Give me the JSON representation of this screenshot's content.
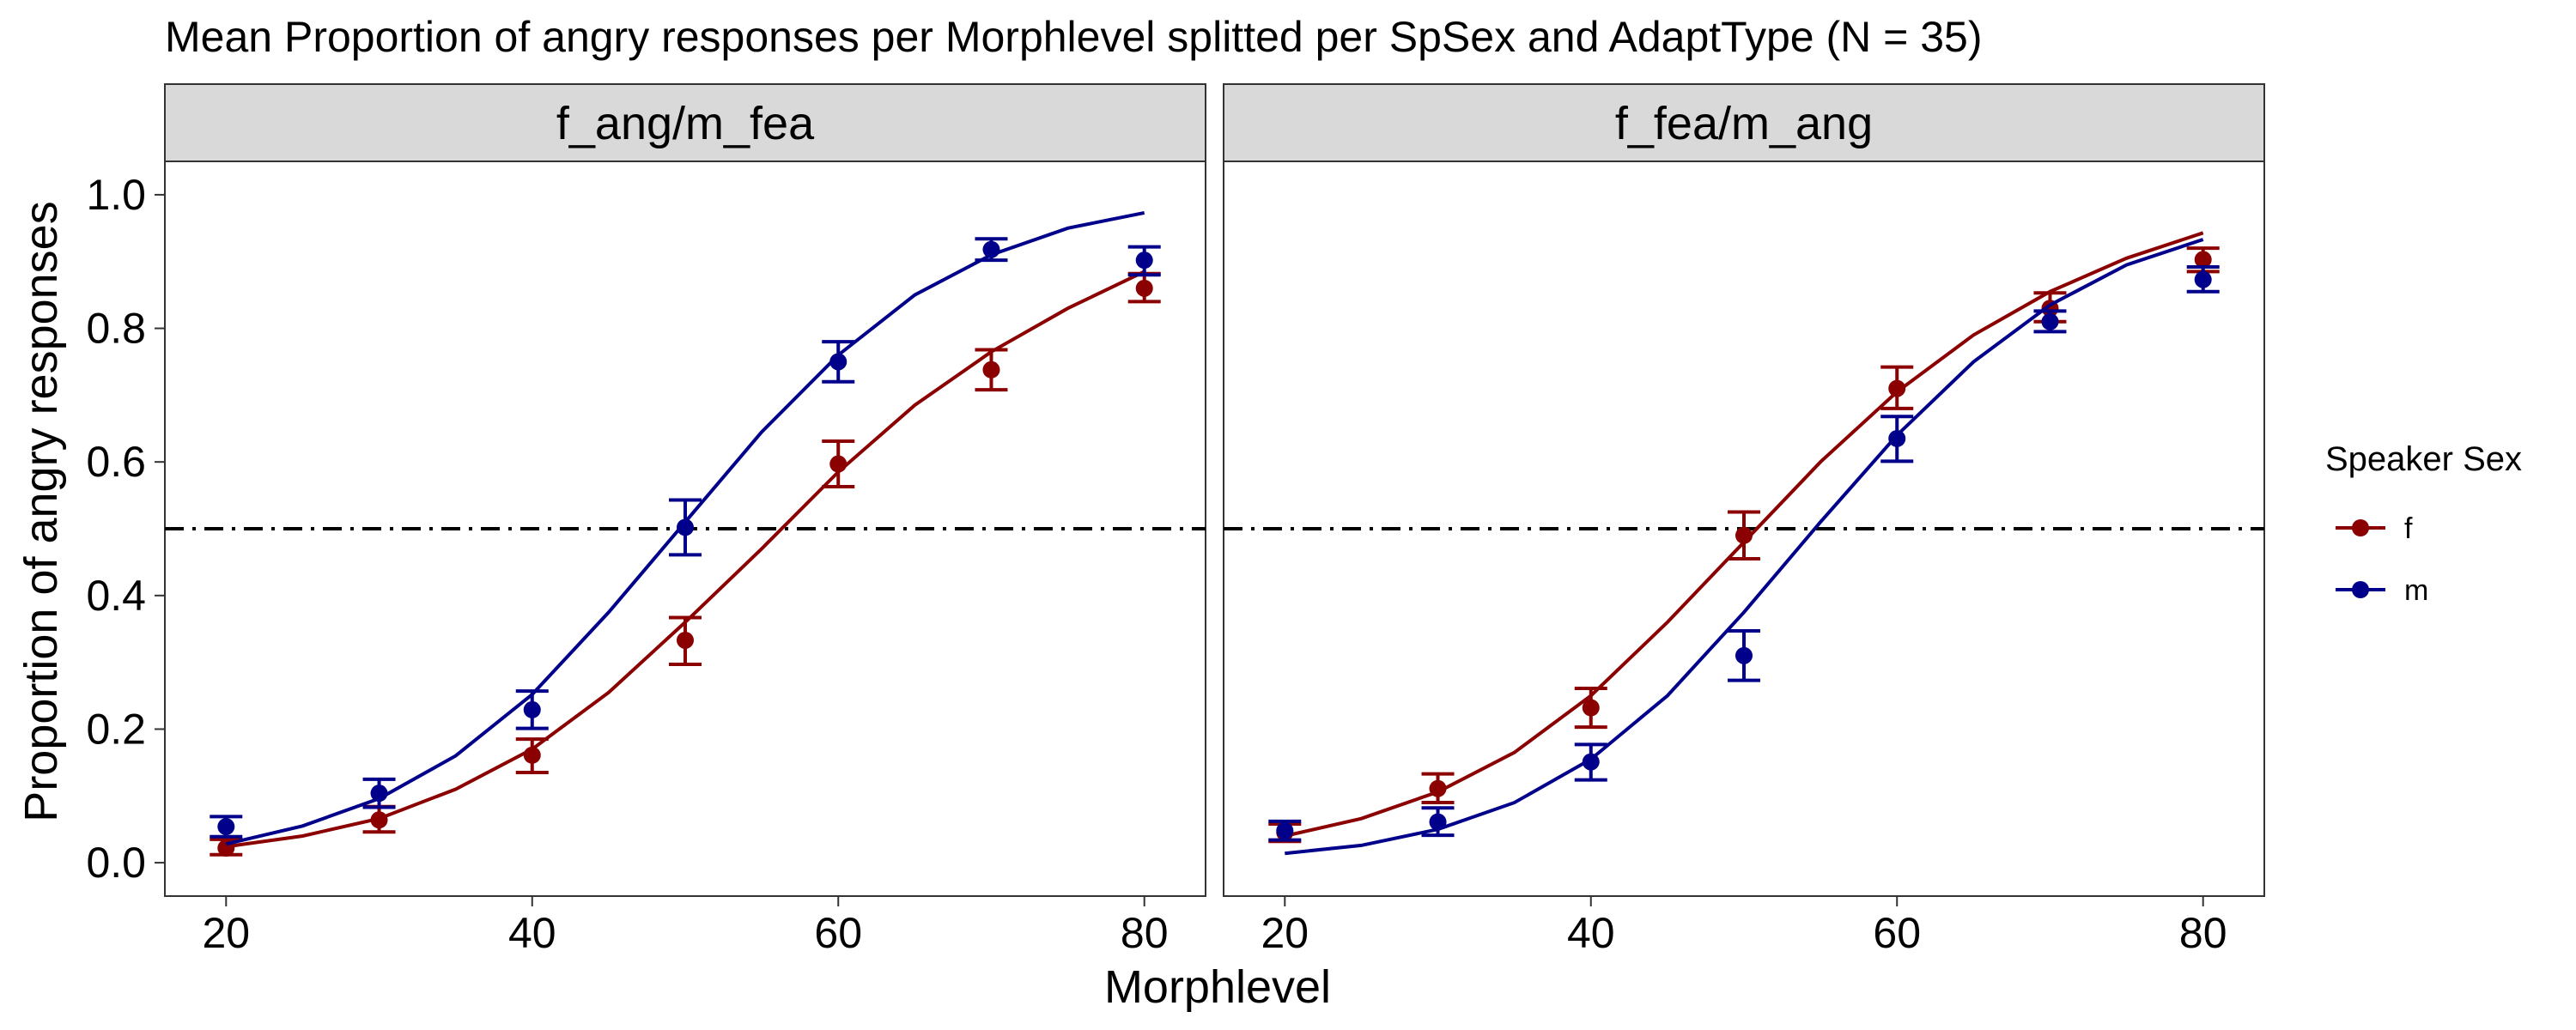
{
  "chart_data": {
    "type": "line",
    "title": "Mean Proportion of angry responses per Morphlevel splitted per SpSex and AdaptType (N = 35)",
    "xlabel": "Morphlevel",
    "ylabel": "Proportion of angry responses",
    "xlim": [
      16,
      84
    ],
    "ylim": [
      -0.05,
      1.05
    ],
    "x_ticks": [
      20,
      40,
      60,
      80
    ],
    "y_ticks": [
      0.0,
      0.2,
      0.4,
      0.6,
      0.8,
      1.0
    ],
    "x_tick_labels": [
      "20",
      "40",
      "60",
      "80"
    ],
    "y_tick_labels": [
      "0.0",
      "0.2",
      "0.4",
      "0.6",
      "0.8",
      "1.0"
    ],
    "reference_line": {
      "y": 0.5,
      "style": "dot-dash",
      "color": "#000000"
    },
    "legend": {
      "title": "Speaker Sex",
      "position": "right",
      "entries": [
        {
          "label": "f",
          "color": "#8B0000"
        },
        {
          "label": "m",
          "color": "#00008B"
        }
      ]
    },
    "panels": [
      {
        "title": "f_ang/m_fea",
        "series": [
          {
            "name": "f",
            "color": "#8B0000",
            "x": [
              20,
              30,
              40,
              50,
              60,
              70,
              80
            ],
            "mean": [
              0.022,
              0.064,
              0.161,
              0.333,
              0.597,
              0.738,
              0.86
            ],
            "err_low": [
              0.012,
              0.046,
              0.135,
              0.297,
              0.563,
              0.708,
              0.84
            ],
            "err_high": [
              0.035,
              0.084,
              0.185,
              0.367,
              0.631,
              0.768,
              0.882
            ],
            "fit_curve": [
              [
                20,
                0.024
              ],
              [
                25,
                0.04
              ],
              [
                30,
                0.066
              ],
              [
                35,
                0.11
              ],
              [
                40,
                0.17
              ],
              [
                45,
                0.255
              ],
              [
                50,
                0.36
              ],
              [
                55,
                0.47
              ],
              [
                60,
                0.585
              ],
              [
                65,
                0.685
              ],
              [
                70,
                0.765
              ],
              [
                75,
                0.83
              ],
              [
                80,
                0.885
              ]
            ]
          },
          {
            "name": "m",
            "color": "#00008B",
            "x": [
              20,
              30,
              40,
              50,
              60,
              70,
              80
            ],
            "mean": [
              0.054,
              0.104,
              0.229,
              0.502,
              0.75,
              0.918,
              0.902
            ],
            "err_low": [
              0.039,
              0.083,
              0.201,
              0.461,
              0.72,
              0.902,
              0.88
            ],
            "err_high": [
              0.069,
              0.125,
              0.257,
              0.543,
              0.78,
              0.934,
              0.922
            ],
            "fit_curve": [
              [
                20,
                0.028
              ],
              [
                25,
                0.055
              ],
              [
                30,
                0.096
              ],
              [
                35,
                0.16
              ],
              [
                40,
                0.252
              ],
              [
                45,
                0.375
              ],
              [
                50,
                0.51
              ],
              [
                55,
                0.645
              ],
              [
                60,
                0.76
              ],
              [
                65,
                0.85
              ],
              [
                70,
                0.91
              ],
              [
                75,
                0.95
              ],
              [
                80,
                0.973
              ]
            ]
          }
        ]
      },
      {
        "title": "f_fea/m_ang",
        "series": [
          {
            "name": "f",
            "color": "#8B0000",
            "x": [
              20,
              30,
              40,
              50,
              60,
              70,
              80
            ],
            "mean": [
              0.045,
              0.111,
              0.232,
              0.49,
              0.71,
              0.83,
              0.903
            ],
            "err_low": [
              0.032,
              0.09,
              0.203,
              0.455,
              0.68,
              0.81,
              0.885
            ],
            "err_high": [
              0.058,
              0.133,
              0.261,
              0.525,
              0.742,
              0.853,
              0.92
            ],
            "fit_curve": [
              [
                20,
                0.04
              ],
              [
                25,
                0.066
              ],
              [
                30,
                0.106
              ],
              [
                35,
                0.165
              ],
              [
                40,
                0.25
              ],
              [
                45,
                0.36
              ],
              [
                50,
                0.48
              ],
              [
                55,
                0.6
              ],
              [
                60,
                0.705
              ],
              [
                65,
                0.79
              ],
              [
                70,
                0.855
              ],
              [
                75,
                0.905
              ],
              [
                80,
                0.943
              ]
            ]
          },
          {
            "name": "m",
            "color": "#00008B",
            "x": [
              20,
              30,
              40,
              50,
              60,
              70,
              80
            ],
            "mean": [
              0.048,
              0.061,
              0.151,
              0.31,
              0.635,
              0.81,
              0.873
            ],
            "err_low": [
              0.034,
              0.041,
              0.124,
              0.273,
              0.601,
              0.795,
              0.855
            ],
            "err_high": [
              0.062,
              0.082,
              0.177,
              0.347,
              0.668,
              0.826,
              0.892
            ],
            "fit_curve": [
              [
                20,
                0.014
              ],
              [
                25,
                0.026
              ],
              [
                30,
                0.05
              ],
              [
                35,
                0.09
              ],
              [
                40,
                0.155
              ],
              [
                45,
                0.25
              ],
              [
                50,
                0.375
              ],
              [
                55,
                0.51
              ],
              [
                60,
                0.64
              ],
              [
                65,
                0.75
              ],
              [
                70,
                0.835
              ],
              [
                75,
                0.895
              ],
              [
                80,
                0.933
              ]
            ]
          }
        ]
      }
    ]
  }
}
